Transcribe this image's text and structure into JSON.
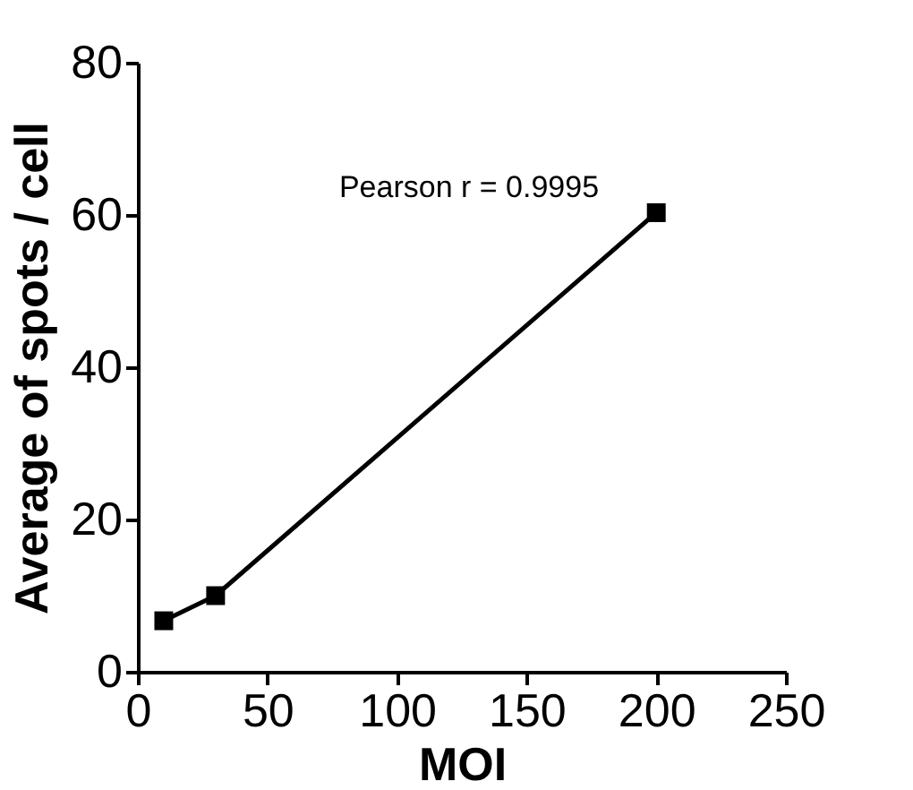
{
  "chart_data": {
    "type": "line",
    "xlabel": "MOI",
    "ylabel": "Average of spots / cell",
    "x": [
      10,
      30,
      200
    ],
    "series": [
      {
        "color": "#000000",
        "values": [
          6.7,
          10.0,
          60.3
        ]
      }
    ],
    "xlim": [
      0,
      250
    ],
    "xticks": [
      0,
      50,
      100,
      150,
      200,
      250
    ],
    "ylim": [
      0,
      80
    ],
    "yticks": [
      0,
      20,
      40,
      60,
      80
    ],
    "grid": false,
    "legend": false,
    "marker": "square",
    "line_style": "solid",
    "annotations": [
      "Pearson r = 0.9995"
    ]
  }
}
